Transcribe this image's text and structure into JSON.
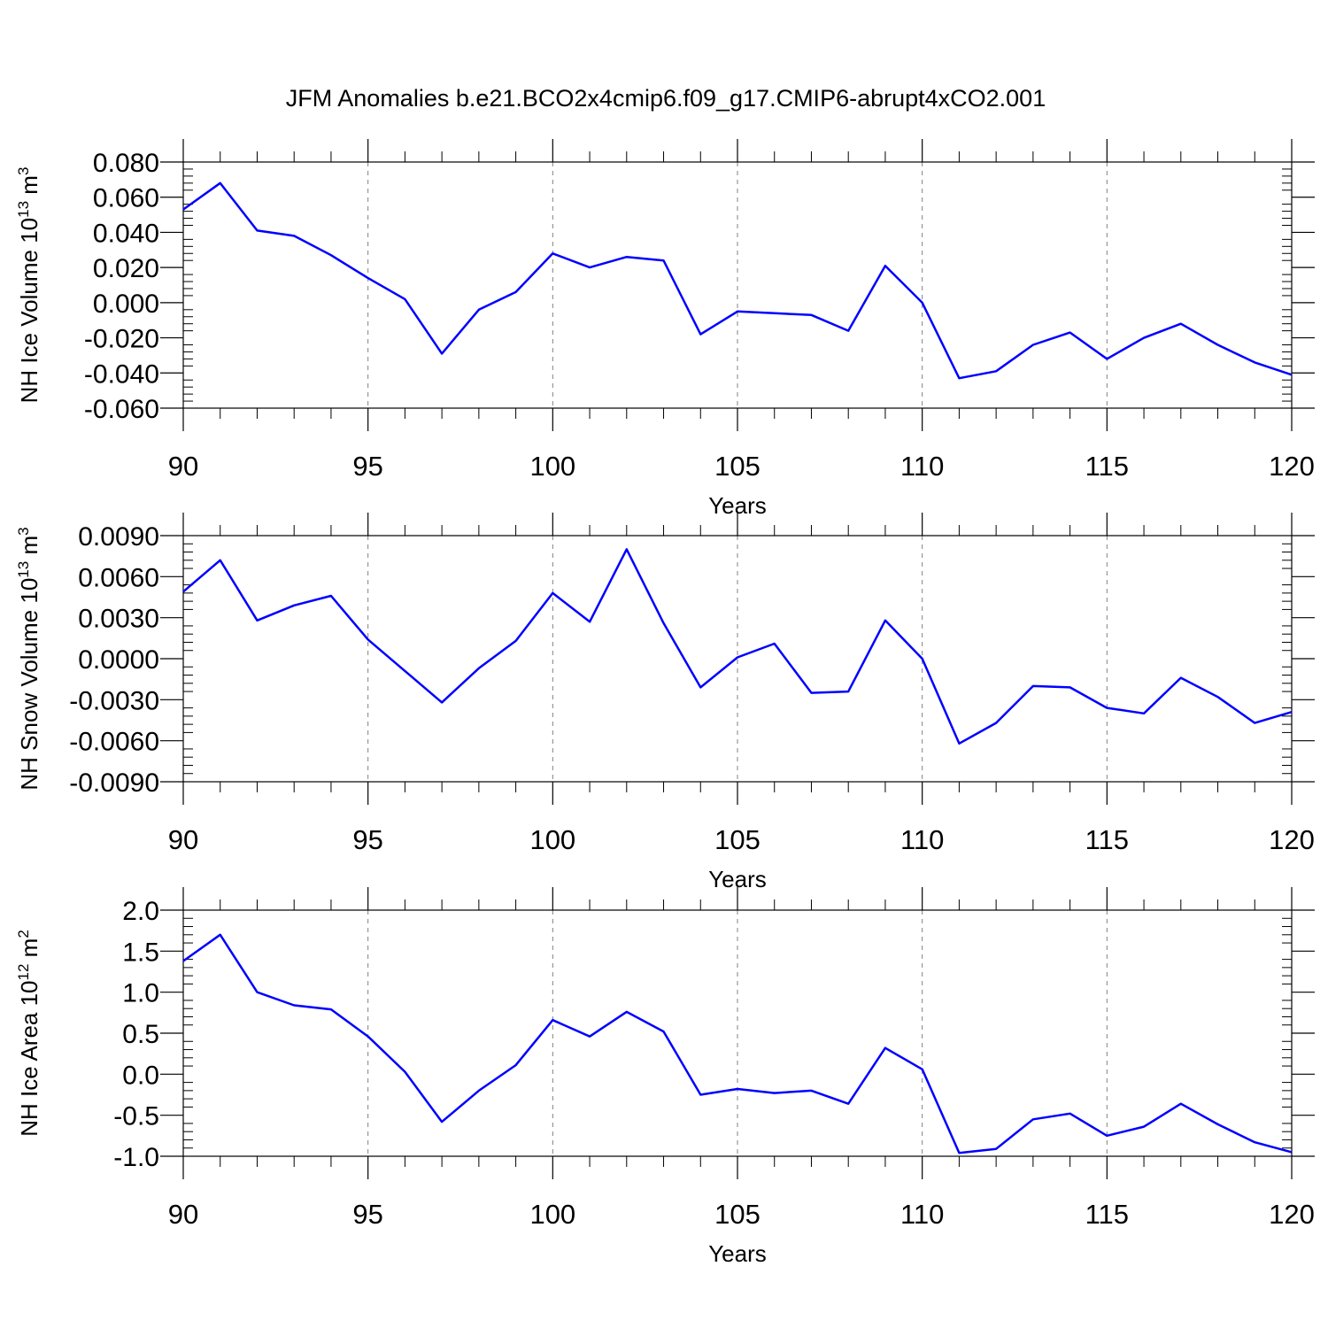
{
  "title": "JFM Anomalies b.e21.BCO2x4cmip6.f09_g17.CMIP6-abrupt4xCO2.001",
  "colors": {
    "line": "#0000ff",
    "axis": "#000000",
    "grid": "#808080"
  },
  "chart_data": [
    {
      "type": "line",
      "ylabel": {
        "text": "NH Ice Volume 10",
        "sup": "13",
        "unit": " m",
        "unit_sup": "3"
      },
      "xlabel": "Years",
      "xlim": [
        90,
        120
      ],
      "ylim": [
        -0.06,
        0.08
      ],
      "grid": "vertical dashed at major x ticks",
      "xticks": [
        90,
        95,
        100,
        105,
        110,
        115,
        120
      ],
      "xtick_labels": [
        "90",
        "95",
        "100",
        "105",
        "110",
        "115",
        "120"
      ],
      "yticks": [
        -0.06,
        -0.04,
        -0.02,
        0.0,
        0.02,
        0.04,
        0.06,
        0.08
      ],
      "ytick_labels": [
        "-0.060",
        "-0.040",
        "-0.020",
        "0.000",
        "0.020",
        "0.040",
        "0.060",
        "0.080"
      ],
      "series": [
        {
          "x": [
            90,
            91,
            92,
            93,
            94,
            95,
            96,
            97,
            98,
            99,
            100,
            101,
            102,
            103,
            104,
            105,
            106,
            107,
            108,
            109,
            110,
            111,
            112,
            113,
            114,
            115,
            116,
            117,
            118,
            119,
            120
          ],
          "values": [
            0.053,
            0.068,
            0.041,
            0.038,
            0.027,
            0.014,
            0.002,
            -0.029,
            -0.004,
            0.006,
            0.028,
            0.02,
            0.026,
            0.024,
            -0.018,
            -0.005,
            -0.006,
            -0.007,
            -0.016,
            0.021,
            0.0,
            -0.043,
            -0.039,
            -0.024,
            -0.017,
            -0.032,
            -0.02,
            -0.012,
            -0.024,
            -0.034,
            -0.041
          ]
        }
      ]
    },
    {
      "type": "line",
      "ylabel": {
        "text": "NH Snow Volume 10",
        "sup": "13",
        "unit": " m",
        "unit_sup": "3"
      },
      "xlabel": "Years",
      "xlim": [
        90,
        120
      ],
      "ylim": [
        -0.009,
        0.009
      ],
      "grid": "vertical dashed at major x ticks",
      "xticks": [
        90,
        95,
        100,
        105,
        110,
        115,
        120
      ],
      "xtick_labels": [
        "90",
        "95",
        "100",
        "105",
        "110",
        "115",
        "120"
      ],
      "yticks": [
        -0.009,
        -0.006,
        -0.003,
        0.0,
        0.003,
        0.006,
        0.009
      ],
      "ytick_labels": [
        "-0.0090",
        "-0.0060",
        "-0.0030",
        "0.0000",
        "0.0030",
        "0.0060",
        "0.0090"
      ],
      "series": [
        {
          "x": [
            90,
            91,
            92,
            93,
            94,
            95,
            96,
            97,
            98,
            99,
            100,
            101,
            102,
            103,
            104,
            105,
            106,
            107,
            108,
            109,
            110,
            111,
            112,
            113,
            114,
            115,
            116,
            117,
            118,
            119,
            120
          ],
          "values": [
            0.0049,
            0.0072,
            0.0028,
            0.0039,
            0.0046,
            0.0014,
            -0.0009,
            -0.0032,
            -0.0007,
            0.0013,
            0.0048,
            0.0027,
            0.008,
            0.0026,
            -0.0021,
            0.0001,
            0.0011,
            -0.0025,
            -0.0024,
            0.0028,
            0.0,
            -0.0062,
            -0.0047,
            -0.002,
            -0.0021,
            -0.0036,
            -0.004,
            -0.0014,
            -0.0028,
            -0.0047,
            -0.0039
          ]
        }
      ]
    },
    {
      "type": "line",
      "ylabel": {
        "text": "NH Ice Area 10",
        "sup": "12",
        "unit": " m",
        "unit_sup": "2"
      },
      "xlabel": "Years",
      "xlim": [
        90,
        120
      ],
      "ylim": [
        -1.0,
        2.0
      ],
      "grid": "vertical dashed at major x ticks",
      "xticks": [
        90,
        95,
        100,
        105,
        110,
        115,
        120
      ],
      "xtick_labels": [
        "90",
        "95",
        "100",
        "105",
        "110",
        "115",
        "120"
      ],
      "yticks": [
        -1.0,
        -0.5,
        0.0,
        0.5,
        1.0,
        1.5,
        2.0
      ],
      "ytick_labels": [
        "-1.0",
        "-0.5",
        "0.0",
        "0.5",
        "1.0",
        "1.5",
        "2.0"
      ],
      "series": [
        {
          "x": [
            90,
            91,
            92,
            93,
            94,
            95,
            96,
            97,
            98,
            99,
            100,
            101,
            102,
            103,
            104,
            105,
            106,
            107,
            108,
            109,
            110,
            111,
            112,
            113,
            114,
            115,
            116,
            117,
            118,
            119,
            120
          ],
          "values": [
            1.38,
            1.7,
            1.0,
            0.84,
            0.79,
            0.46,
            0.03,
            -0.58,
            -0.2,
            0.11,
            0.66,
            0.46,
            0.76,
            0.52,
            -0.25,
            -0.18,
            -0.23,
            -0.2,
            -0.36,
            0.32,
            0.06,
            -0.96,
            -0.91,
            -0.55,
            -0.48,
            -0.75,
            -0.64,
            -0.36,
            -0.61,
            -0.83,
            -0.95
          ]
        }
      ]
    }
  ]
}
